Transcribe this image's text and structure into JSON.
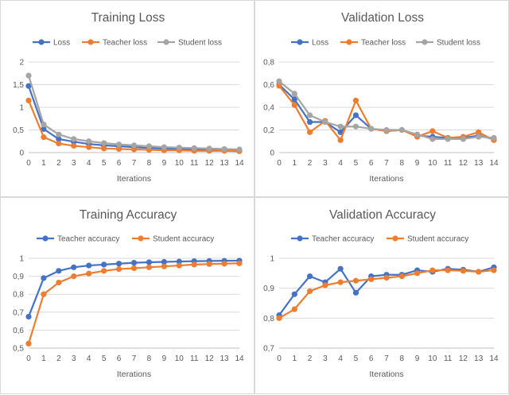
{
  "chart_data": [
    {
      "type": "line",
      "title": "Training Loss",
      "xlabel": "Iterations",
      "ylabel": "",
      "ylim": [
        0,
        2
      ],
      "yticks": [
        "0",
        "0,5",
        "1",
        "1,5",
        "2"
      ],
      "ytick_values": [
        0,
        0.5,
        1,
        1.5,
        2
      ],
      "categories": [
        "0",
        "1",
        "2",
        "3",
        "4",
        "5",
        "6",
        "7",
        "8",
        "9",
        "10",
        "11",
        "12",
        "13",
        "14"
      ],
      "series": [
        {
          "name": "Loss",
          "color": "#4472c4",
          "values": [
            1.47,
            0.52,
            0.3,
            0.24,
            0.19,
            0.16,
            0.14,
            0.12,
            0.1,
            0.09,
            0.08,
            0.07,
            0.06,
            0.06,
            0.05
          ]
        },
        {
          "name": "Teacher loss",
          "color": "#ed7d31",
          "values": [
            1.15,
            0.34,
            0.2,
            0.15,
            0.12,
            0.09,
            0.08,
            0.07,
            0.06,
            0.05,
            0.05,
            0.04,
            0.04,
            0.04,
            0.03
          ]
        },
        {
          "name": "Student loss",
          "color": "#a5a5a5",
          "values": [
            1.7,
            0.62,
            0.4,
            0.3,
            0.25,
            0.21,
            0.18,
            0.16,
            0.14,
            0.12,
            0.11,
            0.1,
            0.09,
            0.08,
            0.07
          ]
        }
      ]
    },
    {
      "type": "line",
      "title": "Validation Loss",
      "xlabel": "Iterations",
      "ylabel": "",
      "ylim": [
        0,
        0.8
      ],
      "yticks": [
        "0",
        "0,2",
        "0,4",
        "0,6",
        "0,8"
      ],
      "ytick_values": [
        0,
        0.2,
        0.4,
        0.6,
        0.8
      ],
      "categories": [
        "0",
        "1",
        "2",
        "3",
        "4",
        "5",
        "6",
        "7",
        "8",
        "9",
        "10",
        "11",
        "12",
        "13",
        "14"
      ],
      "series": [
        {
          "name": "Loss",
          "color": "#4472c4",
          "values": [
            0.6,
            0.47,
            0.27,
            0.27,
            0.18,
            0.33,
            0.21,
            0.19,
            0.2,
            0.15,
            0.14,
            0.13,
            0.13,
            0.15,
            0.12
          ]
        },
        {
          "name": "Teacher loss",
          "color": "#ed7d31",
          "values": [
            0.59,
            0.42,
            0.18,
            0.28,
            0.11,
            0.46,
            0.21,
            0.19,
            0.2,
            0.14,
            0.19,
            0.13,
            0.14,
            0.18,
            0.11
          ]
        },
        {
          "name": "Student loss",
          "color": "#a5a5a5",
          "values": [
            0.63,
            0.52,
            0.33,
            0.27,
            0.23,
            0.23,
            0.21,
            0.2,
            0.2,
            0.16,
            0.12,
            0.12,
            0.12,
            0.14,
            0.13
          ]
        }
      ]
    },
    {
      "type": "line",
      "title": "Training Accuracy",
      "xlabel": "Iterations",
      "ylabel": "",
      "ylim": [
        0.5,
        1
      ],
      "yticks": [
        "0,5",
        "0,6",
        "0,7",
        "0,8",
        "0,9",
        "1"
      ],
      "ytick_values": [
        0.5,
        0.6,
        0.7,
        0.8,
        0.9,
        1
      ],
      "categories": [
        "0",
        "1",
        "2",
        "3",
        "4",
        "5",
        "6",
        "7",
        "8",
        "9",
        "10",
        "11",
        "12",
        "13",
        "14"
      ],
      "series": [
        {
          "name": "Teacher accuracy",
          "color": "#4472c4",
          "values": [
            0.675,
            0.89,
            0.93,
            0.95,
            0.96,
            0.965,
            0.97,
            0.975,
            0.978,
            0.98,
            0.982,
            0.984,
            0.985,
            0.986,
            0.987
          ]
        },
        {
          "name": "Student accuracy",
          "color": "#ed7d31",
          "values": [
            0.525,
            0.8,
            0.865,
            0.9,
            0.915,
            0.93,
            0.94,
            0.945,
            0.95,
            0.955,
            0.96,
            0.965,
            0.968,
            0.97,
            0.972
          ]
        }
      ]
    },
    {
      "type": "line",
      "title": "Validation Accuracy",
      "xlabel": "Iterations",
      "ylabel": "",
      "ylim": [
        0.7,
        1
      ],
      "yticks": [
        "0,7",
        "0,8",
        "0,9",
        "1"
      ],
      "ytick_values": [
        0.7,
        0.8,
        0.9,
        1
      ],
      "categories": [
        "0",
        "1",
        "2",
        "3",
        "4",
        "5",
        "6",
        "7",
        "8",
        "9",
        "10",
        "11",
        "12",
        "13",
        "14"
      ],
      "series": [
        {
          "name": "Teacher accuracy",
          "color": "#4472c4",
          "values": [
            0.81,
            0.88,
            0.94,
            0.92,
            0.965,
            0.885,
            0.94,
            0.945,
            0.945,
            0.96,
            0.955,
            0.965,
            0.962,
            0.955,
            0.97
          ]
        },
        {
          "name": "Student accuracy",
          "color": "#ed7d31",
          "values": [
            0.8,
            0.83,
            0.89,
            0.91,
            0.92,
            0.925,
            0.93,
            0.935,
            0.94,
            0.95,
            0.96,
            0.96,
            0.958,
            0.955,
            0.96
          ]
        }
      ]
    }
  ]
}
